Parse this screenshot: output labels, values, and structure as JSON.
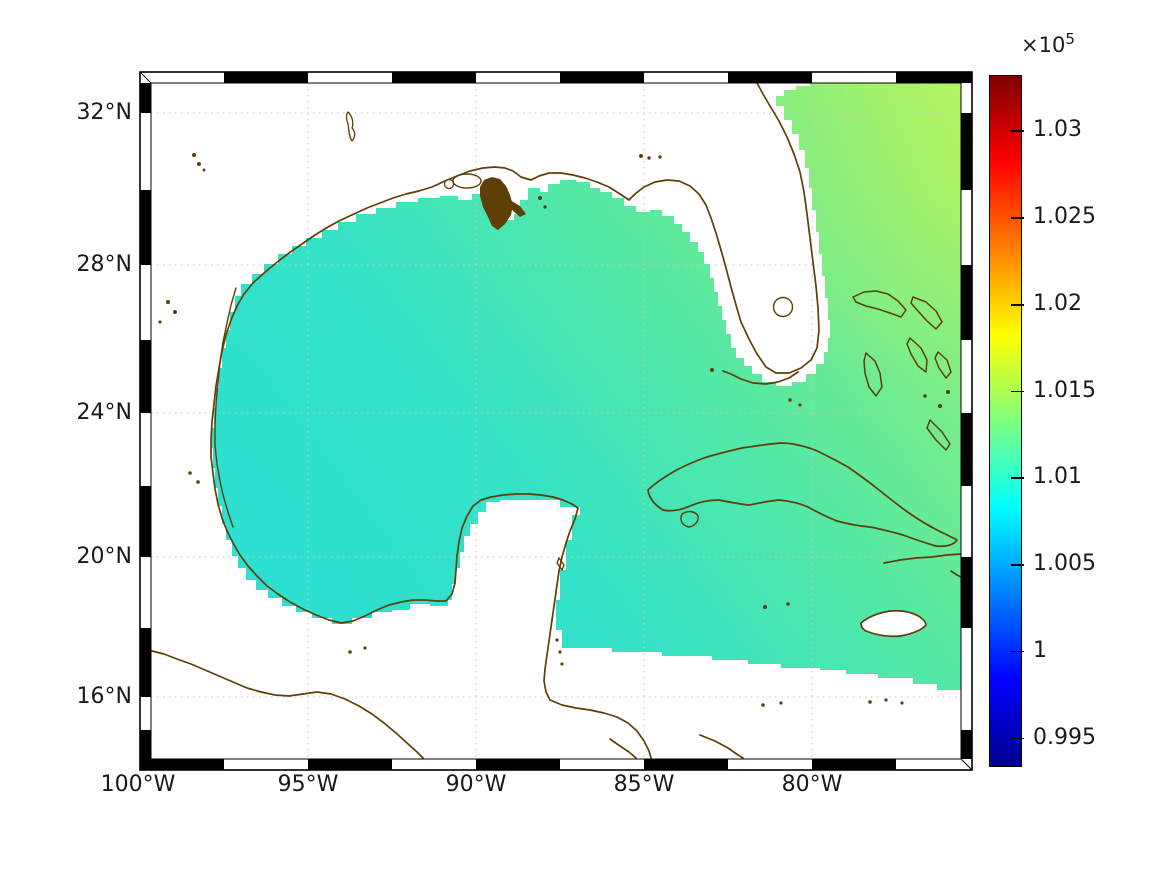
{
  "map": {
    "x_axis": {
      "ticks": [
        "100°W",
        "95°W",
        "90°W",
        "85°W",
        "80°W"
      ]
    },
    "y_axis": {
      "ticks": [
        "32°N",
        "28°N",
        "24°N",
        "20°N",
        "16°N"
      ]
    }
  },
  "colorbar": {
    "scale_prefix": "×10",
    "scale_exponent": "5",
    "tick_labels": [
      "1.03",
      "1.025",
      "1.02",
      "1.015",
      "1.01",
      "1.005",
      "1",
      "0.995"
    ],
    "tick_values": [
      1.03,
      1.025,
      1.02,
      1.015,
      1.01,
      1.005,
      1.0,
      0.995
    ],
    "value_min": 0.9933,
    "value_max": 1.0332,
    "colormap": "jet"
  },
  "chart_data": {
    "type": "heatmap",
    "region": "Gulf of Mexico, western Atlantic and northwest Caribbean",
    "x_axis": {
      "label": "",
      "ticks": [
        "100°W",
        "95°W",
        "90°W",
        "85°W",
        "80°W"
      ]
    },
    "y_axis": {
      "label": "",
      "ticks": [
        "32°N",
        "28°N",
        "24°N",
        "20°N",
        "16°N"
      ]
    },
    "colorbar": {
      "scale": "×10^5",
      "tick_labels": [
        "1.03",
        "1.025",
        "1.02",
        "1.015",
        "1.01",
        "1.005",
        "1",
        "0.995"
      ],
      "range": [
        0.9933,
        1.0332
      ],
      "colormap": "jet",
      "position": "right"
    },
    "field_samples_x1e5": [
      {
        "area": "northeast Atlantic corner",
        "value": 1.0135
      },
      {
        "area": "east of Florida / Bahamas",
        "value": 1.0125
      },
      {
        "area": "central Gulf of Mexico",
        "value": 1.011
      },
      {
        "area": "western Gulf of Mexico",
        "value": 1.0105
      },
      {
        "area": "Bay of Campeche",
        "value": 1.0105
      },
      {
        "area": "northwest Caribbean",
        "value": 1.0095
      }
    ],
    "no_data_color": "#ffffff",
    "coastline_color": "#5e3f08",
    "grid": "dotted",
    "frame_style": "alternating black/white checker frame"
  }
}
